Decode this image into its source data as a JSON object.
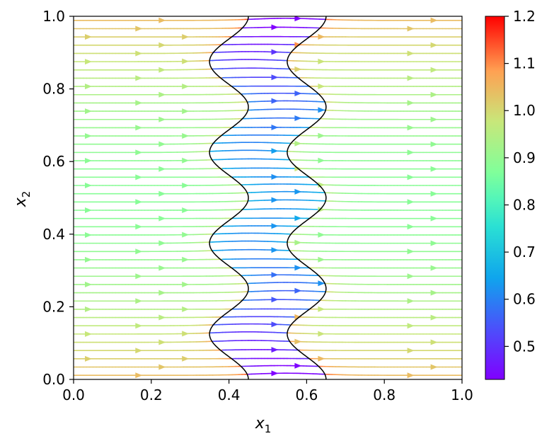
{
  "chart_data": {
    "type": "streamplot",
    "title": "",
    "xlabel": "x",
    "xlabel_sub": "1",
    "ylabel": "x",
    "ylabel_sub": "2",
    "xlim": [
      0.0,
      1.0
    ],
    "ylim": [
      0.0,
      1.0
    ],
    "xticks": [
      0.0,
      0.2,
      0.4,
      0.6,
      0.8,
      1.0
    ],
    "xtick_labels": [
      "0.0",
      "0.2",
      "0.4",
      "0.6",
      "0.8",
      "1.0"
    ],
    "yticks": [
      0.0,
      0.2,
      0.4,
      0.6,
      0.8,
      1.0
    ],
    "ytick_labels": [
      "0.0",
      "0.2",
      "0.4",
      "0.6",
      "0.8",
      "1.0"
    ],
    "grid": false,
    "flow_direction": "left-to-right",
    "colormap": "rainbow",
    "colorbar": {
      "min": 0.43,
      "max": 1.2,
      "ticks": [
        0.5,
        0.6,
        0.7,
        0.8,
        0.9,
        1.0,
        1.1,
        1.2
      ],
      "tick_labels": [
        "0.5",
        "0.6",
        "0.7",
        "0.8",
        "0.9",
        "1.0",
        "1.1",
        "1.2"
      ]
    },
    "interfaces": [
      {
        "center": 0.4,
        "amplitude": 0.05,
        "periods": 4,
        "color": "#000000"
      },
      {
        "center": 0.6,
        "amplitude": 0.05,
        "periods": 4,
        "color": "#000000"
      }
    ],
    "speed_regions": {
      "outer_speed_near_walls": 1.05,
      "outer_speed_middle": 0.88,
      "channel_speed_near_walls": 0.45,
      "channel_speed_middle": 0.68
    },
    "streamline_count": 44
  }
}
